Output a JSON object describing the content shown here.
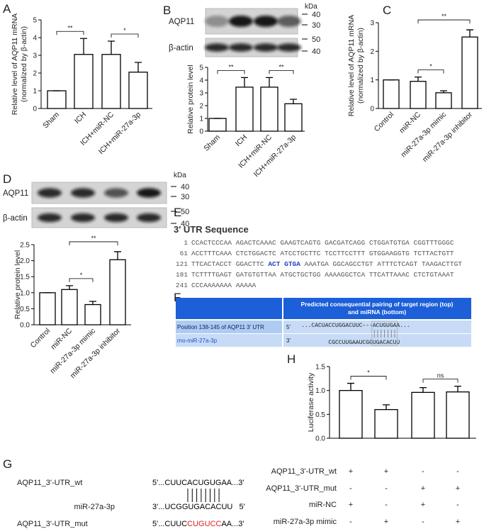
{
  "chart_data": [
    {
      "type": "bar",
      "panel": "A",
      "ylabel": [
        "Relative level of AQP11 mRNA",
        "(normalized by β-actin)"
      ],
      "categories": [
        "Sham",
        "ICH",
        "ICH+miR-NC",
        "ICH+miR-27a-3p"
      ],
      "values": [
        1,
        3.05,
        3.05,
        2.05
      ],
      "errors": [
        0,
        0.9,
        0.75,
        0.55
      ],
      "color": "#ffffff",
      "edge_color": "#000000",
      "ylim": [
        0,
        5
      ],
      "yticks": [
        0,
        1,
        2,
        3,
        4,
        5
      ],
      "brackets": [
        {
          "from": 0,
          "to": 1,
          "label": "**"
        },
        {
          "from": 2,
          "to": 3,
          "label": "*"
        }
      ]
    },
    {
      "type": "bar",
      "panel": "B",
      "ylabel": [
        "Relative protein level"
      ],
      "categories": [
        "Sham",
        "ICH",
        "ICH+miR-NC",
        "ICH+miR-27a-3p"
      ],
      "values": [
        1,
        3.45,
        3.45,
        2.15
      ],
      "errors": [
        0,
        0.75,
        0.75,
        0.35
      ],
      "color": "#ffffff",
      "edge_color": "#000000",
      "ylim": [
        0,
        5
      ],
      "yticks": [
        0,
        1,
        2,
        3,
        4,
        5
      ],
      "brackets": [
        {
          "from": 0,
          "to": 1,
          "label": "**"
        },
        {
          "from": 2,
          "to": 3,
          "label": "**"
        }
      ]
    },
    {
      "type": "bar",
      "panel": "C",
      "ylabel": [
        "Relative level of AQP11 mRNA",
        "(normalized by β-actin)"
      ],
      "categories": [
        "Control",
        "miR-NC",
        "miR-27a-3p mimic",
        "miR-27a-3p inhibitor"
      ],
      "values": [
        1,
        0.95,
        0.55,
        2.5
      ],
      "errors": [
        0,
        0.15,
        0.07,
        0.25
      ],
      "color": "#ffffff",
      "edge_color": "#000000",
      "ylim": [
        0,
        3
      ],
      "yticks": [
        0,
        1,
        2,
        3
      ],
      "brackets": [
        {
          "from": 1,
          "to": 2,
          "label": "*"
        },
        {
          "from": 1,
          "to": 3,
          "label": "**"
        }
      ]
    },
    {
      "type": "bar",
      "panel": "D",
      "ylabel": [
        "Relative protein level"
      ],
      "categories": [
        "Control",
        "miR-NC",
        "miR-27a-3p mimic",
        "miR-27a-3p inhibitor"
      ],
      "values": [
        1,
        1.1,
        0.63,
        2.03
      ],
      "errors": [
        0,
        0.12,
        0.1,
        0.25
      ],
      "color": "#ffffff",
      "edge_color": "#000000",
      "ylim": [
        0,
        2.5
      ],
      "yticks": [
        {
          "value": 0,
          "label": "0.0"
        },
        0.5,
        {
          "value": 1,
          "label": "1.0"
        },
        1.5,
        {
          "value": 2,
          "label": "2.0"
        },
        2.5
      ],
      "brackets": [
        {
          "from": 1,
          "to": 2,
          "label": "*"
        },
        {
          "from": 1,
          "to": 3,
          "label": "**"
        }
      ]
    },
    {
      "type": "bar",
      "panel": "H",
      "ylabel": [
        "Luciferase activity"
      ],
      "categories": [
        null,
        null,
        null,
        null
      ],
      "values": [
        1.0,
        0.6,
        0.96,
        0.97
      ],
      "errors": [
        0.15,
        0.1,
        0.1,
        0.12
      ],
      "color": "#ffffff",
      "edge_color": "#000000",
      "ylim": [
        0,
        1.5
      ],
      "yticks": [
        {
          "value": 0,
          "label": "0.0"
        },
        0.5,
        {
          "value": 1,
          "label": "1.0"
        },
        1.5
      ],
      "brackets": [
        {
          "from": 0,
          "to": 1,
          "label": "*"
        },
        {
          "from": 2,
          "to": 3,
          "label": "ns"
        }
      ]
    }
  ],
  "blots": [
    {
      "labels": [
        "AQP11",
        "β-actin"
      ],
      "unit": "kDa",
      "markers": [
        40,
        30,
        50,
        40
      ]
    },
    {
      "labels": [
        "AQP11",
        "β-actin"
      ],
      "unit": "kDa",
      "markers": [
        40,
        30,
        50,
        40
      ]
    }
  ],
  "sequence": {
    "panel": "E",
    "title": "3' UTR Sequence",
    "lines": [
      {
        "start": 1,
        "parts": [
          {
            "text": "CCACTCCCAA AGACTCAAAC GAAGTCAGTG GACGATCAGG CTGGATGTGA CGGTTTGGGC",
            "color": "#555555"
          }
        ]
      },
      {
        "start": 61,
        "parts": [
          {
            "text": "ACCTTTCAAA CTCTGGACTC ATCCTGCTTC TCCTTCCTTT GTGGAAGGTG TCTTACTGTT",
            "color": "#555555"
          }
        ]
      },
      {
        "start": 121,
        "parts": [
          {
            "text": "TTCACTACCT GGACTTC",
            "color": "#555555"
          },
          {
            "text": "ACT GTGA",
            "color": "#2a3fbf"
          },
          {
            "text": "AAATGA GGCAGCCTGT ATTTCTCAGT TAAGACTTGT",
            "color": "#555555"
          }
        ]
      },
      {
        "start": 181,
        "parts": [
          {
            "text": "TCTTTTGAGT GATGTGTTAA ATGCTGCTGG AAAAGGCTCA TTCATTAAAC CTCTGTAAAT",
            "color": "#555555"
          }
        ]
      },
      {
        "start": 241,
        "parts": [
          {
            "text": "CCCAAAAAAA AAAAA",
            "color": "#555555"
          }
        ]
      }
    ]
  },
  "pairing_table": {
    "panel": "F",
    "header": [
      "Predicted consequential pairing of target region (top)",
      "and miRNA (bottom)"
    ],
    "rows": [
      {
        "label": "Position 138-145 of AQP11 3' UTR",
        "end": "5'",
        "sequence": "...CACUACCUGGACUUC---ACUGUGAA..."
      },
      {
        "label": "rno-miR-27a-3p",
        "end": "3'",
        "sequence": "CGCCUUGAAUCGGUGACACUU"
      }
    ]
  },
  "seed_schematic": {
    "panel": "G",
    "rows": [
      {
        "label": "AQP11_3'-UTR_wt",
        "parts": [
          {
            "text": "5'...CUUCACUGUGAA...3'",
            "color": "#000000"
          }
        ]
      },
      {
        "label": "miR-27a-3p",
        "parts": [
          {
            "text": "3'...UCGGUGACACUU   5'",
            "color": "#000000"
          }
        ]
      },
      {
        "label": "AQP11_3'-UTR_mut",
        "parts": [
          {
            "text": "5'...CUUC",
            "color": "#000000"
          },
          {
            "text": "CUGUCC",
            "color": "#e02020"
          },
          {
            "text": "AA...3'",
            "color": "#000000"
          }
        ]
      }
    ]
  },
  "luciferase_table": {
    "rows": [
      {
        "label": "AQP11_3'-UTR_wt",
        "signs": [
          "+",
          "+",
          "-",
          "-"
        ]
      },
      {
        "label": "AQP11_3'-UTR_mut",
        "signs": [
          "-",
          "-",
          "+",
          "+"
        ]
      },
      {
        "label": "miR-NC",
        "signs": [
          "+",
          "-",
          "+",
          "-"
        ]
      },
      {
        "label": "miR-27a-3p mimic",
        "signs": [
          "-",
          "+",
          "-",
          "+"
        ]
      }
    ]
  }
}
